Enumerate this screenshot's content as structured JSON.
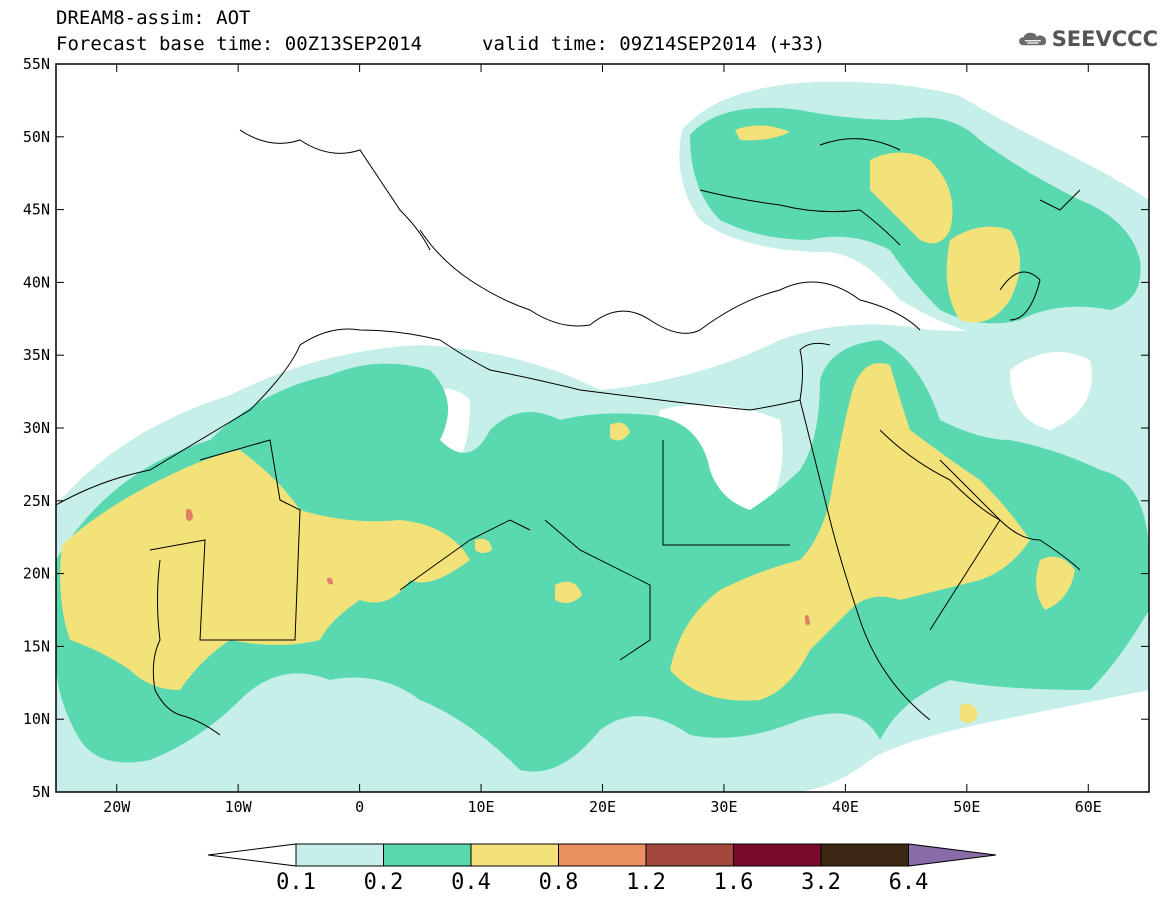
{
  "header": {
    "title_line1": "DREAM8-assim: AOT",
    "title_line2": "Forecast base time: 00Z13SEP2014",
    "valid_time": "valid time: 09Z14SEP2014 (+33)",
    "logo_text": "SEEVCCC",
    "logo_icon": "cloud-icon"
  },
  "map": {
    "lat_labels": [
      "55N",
      "50N",
      "45N",
      "40N",
      "35N",
      "30N",
      "25N",
      "20N",
      "15N",
      "10N",
      "5N"
    ],
    "lon_labels": [
      "20W",
      "10W",
      "0",
      "10E",
      "20E",
      "30E",
      "40E",
      "50E",
      "60E"
    ],
    "extent": {
      "lon_min": -25,
      "lon_max": 65,
      "lat_min": 5,
      "lat_max": 55
    }
  },
  "colorbar": {
    "levels": [
      "0.1",
      "0.2",
      "0.4",
      "0.8",
      "1.2",
      "1.6",
      "3.2",
      "6.4"
    ],
    "colors": [
      "#ffffff",
      "#c7efe9",
      "#5ad9b0",
      "#f3e27a",
      "#e89060",
      "#a4473d",
      "#7a0a2c",
      "#3c2712",
      "#8a6aa8"
    ]
  },
  "fields": {
    "low_color": "#c7efe9",
    "mid_color": "#5ad9b0",
    "high_color": "#f3e27a",
    "peak_color": "#e07d66"
  }
}
